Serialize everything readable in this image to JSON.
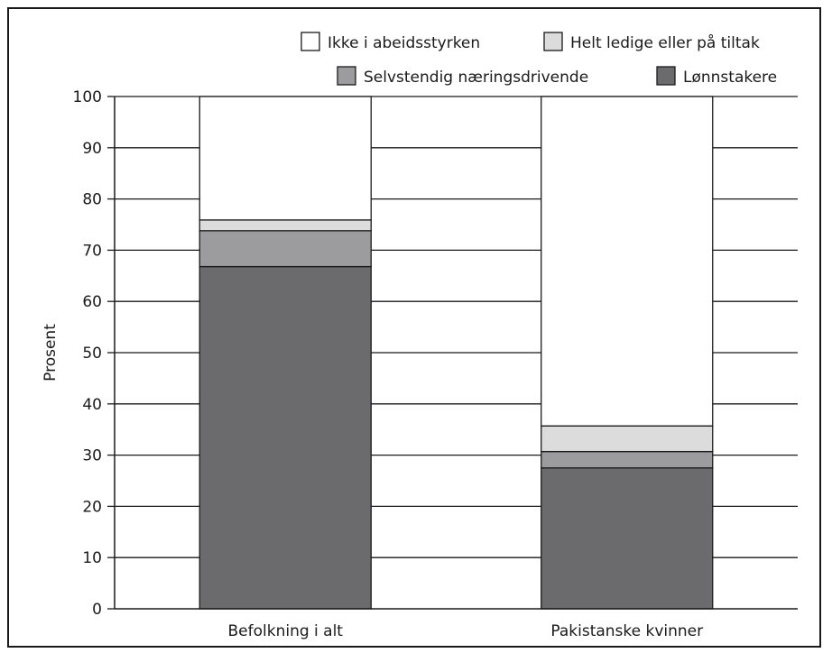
{
  "chart_data": {
    "type": "bar",
    "stacked": true,
    "categories": [
      "Befolkning i alt",
      "Pakistanske kvinner"
    ],
    "ylabel": "Prosent",
    "ylim": [
      0,
      100
    ],
    "yticks": [
      0,
      10,
      20,
      30,
      40,
      50,
      60,
      70,
      80,
      90,
      100
    ],
    "grid": true,
    "legend_position": "top-right",
    "series": [
      {
        "name": "Lønnstakere",
        "color": "#6b6b6e",
        "values": [
          66.8,
          27.5
        ]
      },
      {
        "name": "Selvstendig næringsdrivende",
        "color": "#9c9c9f",
        "values": [
          7.0,
          3.2
        ]
      },
      {
        "name": "Helt ledige eller på tiltak",
        "color": "#dcdcdd",
        "values": [
          2.1,
          5.0
        ]
      },
      {
        "name": "Ikke i abeidsstyrken",
        "color": "#ffffff",
        "values": [
          24.1,
          64.3
        ]
      }
    ],
    "legend_order": [
      "Ikke i abeidsstyrken",
      "Helt ledige eller på tiltak",
      "Selvstendig næringsdrivende",
      "Lønnstakere"
    ]
  }
}
